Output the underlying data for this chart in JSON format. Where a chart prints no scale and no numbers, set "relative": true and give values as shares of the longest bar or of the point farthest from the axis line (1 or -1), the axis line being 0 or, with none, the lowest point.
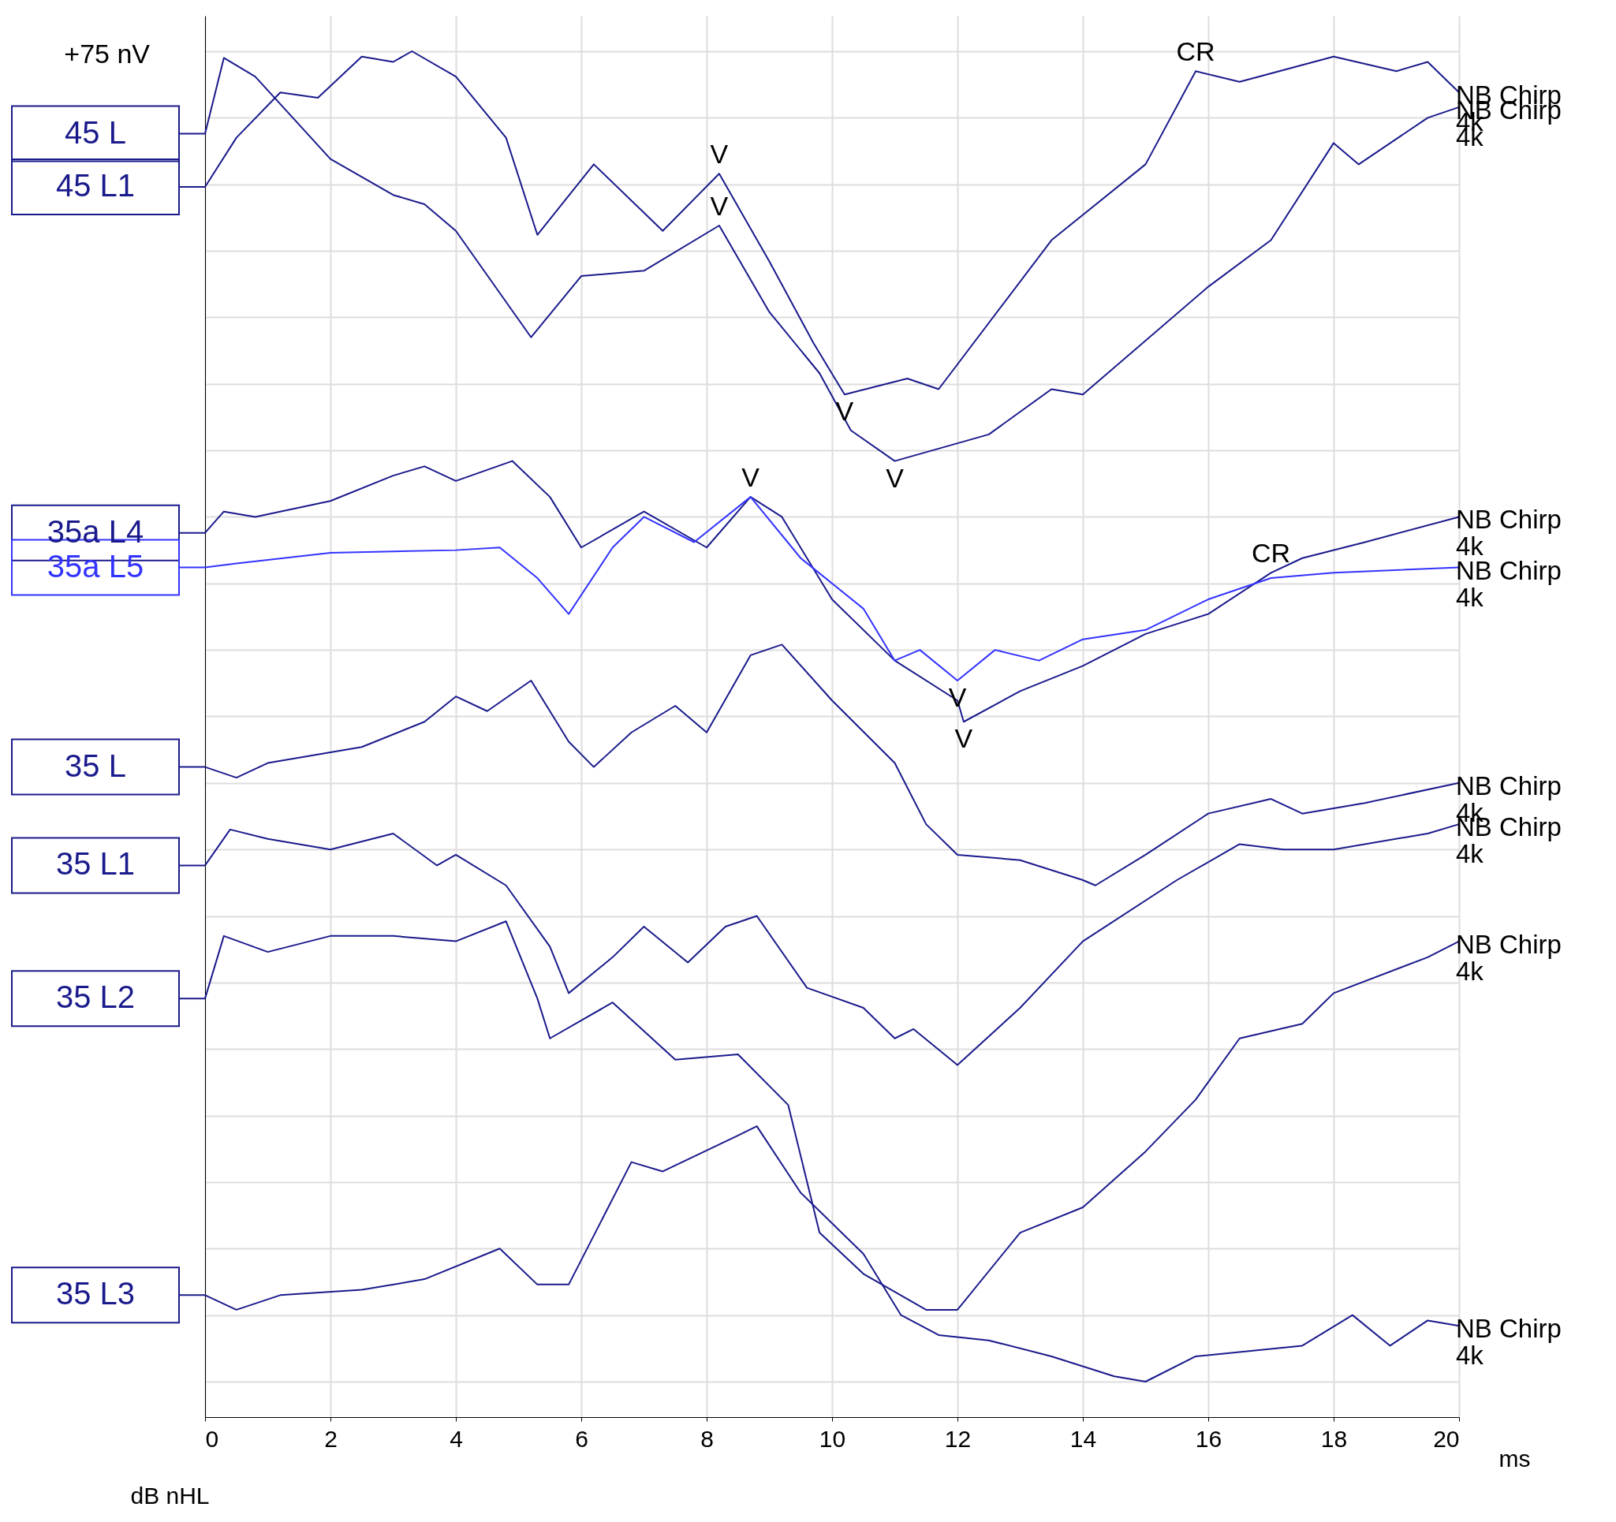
{
  "chart_data": {
    "type": "line",
    "relative": true,
    "xlabel": "ms",
    "ylabel": "dB nHL",
    "xlim": [
      0,
      20
    ],
    "xticks": [
      0,
      2,
      4,
      6,
      8,
      10,
      12,
      14,
      16,
      18,
      20
    ],
    "grid": true,
    "legend": "left",
    "marker": "none",
    "line_style": "solid",
    "series": [
      {
        "name": "45 L",
        "color": "#1a1a8c",
        "x": [
          0,
          0.3,
          0.8,
          2,
          3,
          3.5,
          4,
          5.2,
          6,
          7,
          8.2,
          9,
          9.8,
          10.3,
          11,
          12.5,
          13.5,
          14,
          16,
          17,
          18,
          18.4,
          19.5,
          20
        ],
        "values": [
          0.938,
          0.995,
          0.981,
          0.919,
          0.892,
          0.885,
          0.865,
          0.785,
          0.831,
          0.835,
          0.869,
          0.804,
          0.758,
          0.715,
          0.692,
          0.712,
          0.746,
          0.742,
          0.823,
          0.858,
          0.931,
          0.915,
          0.95,
          0.958
        ]
      },
      {
        "name": "45 L1",
        "color": "#1a1a8c",
        "x": [
          0,
          0.5,
          1.2,
          1.8,
          2.5,
          3,
          3.3,
          4,
          4.8,
          5.3,
          6.2,
          7.3,
          8.2,
          9,
          9.7,
          10.2,
          11.2,
          11.7,
          13.5,
          15,
          15.8,
          16.5,
          18,
          19,
          19.5,
          20
        ],
        "values": [
          0.898,
          0.935,
          0.969,
          0.965,
          0.996,
          0.992,
          1.0,
          0.981,
          0.935,
          0.862,
          0.915,
          0.865,
          0.908,
          0.842,
          0.781,
          0.742,
          0.754,
          0.746,
          0.858,
          0.915,
          0.985,
          0.977,
          0.996,
          0.985,
          0.992,
          0.969
        ]
      },
      {
        "name": "35a L4",
        "color": "#1a1a8c",
        "x": [
          0,
          0.3,
          0.8,
          2,
          3,
          3.5,
          4,
          4.9,
          5.5,
          6,
          7,
          8,
          8.7,
          9.2,
          10,
          11,
          12,
          12.1,
          13,
          14,
          15,
          16,
          17,
          17.5,
          18.5,
          20
        ],
        "values": [
          0.638,
          0.654,
          0.65,
          0.662,
          0.681,
          0.688,
          0.677,
          0.692,
          0.665,
          0.627,
          0.654,
          0.627,
          0.665,
          0.65,
          0.588,
          0.542,
          0.512,
          0.496,
          0.519,
          0.538,
          0.562,
          0.577,
          0.608,
          0.619,
          0.631,
          0.65
        ]
      },
      {
        "name": "35a L5",
        "color": "#3333ff",
        "x": [
          0,
          0.5,
          2,
          4,
          4.7,
          5.3,
          5.8,
          6.5,
          7,
          7.8,
          8.7,
          9.5,
          10.5,
          11,
          11.4,
          12,
          12.6,
          13.3,
          14,
          15,
          16,
          17,
          18,
          20
        ],
        "values": [
          0.612,
          0.615,
          0.623,
          0.625,
          0.627,
          0.604,
          0.577,
          0.627,
          0.65,
          0.631,
          0.665,
          0.619,
          0.581,
          0.542,
          0.55,
          0.527,
          0.55,
          0.542,
          0.558,
          0.565,
          0.588,
          0.604,
          0.608,
          0.612
        ]
      },
      {
        "name": "35 L",
        "color": "#1a1a8c",
        "x": [
          0,
          0.5,
          1,
          2.5,
          3.5,
          4,
          4.5,
          5.2,
          5.8,
          6.2,
          6.8,
          7.5,
          8,
          8.7,
          9.2,
          10,
          11,
          11.5,
          12,
          13,
          14,
          14.2,
          15,
          16,
          17,
          17.5,
          18.5,
          20
        ],
        "values": [
          0.462,
          0.454,
          0.465,
          0.477,
          0.496,
          0.515,
          0.504,
          0.527,
          0.481,
          0.462,
          0.488,
          0.508,
          0.488,
          0.546,
          0.554,
          0.512,
          0.465,
          0.419,
          0.396,
          0.392,
          0.377,
          0.373,
          0.396,
          0.427,
          0.438,
          0.427,
          0.435,
          0.45
        ]
      },
      {
        "name": "35 L1",
        "color": "#1a1a8c",
        "x": [
          0,
          0.4,
          1,
          2,
          3,
          3.7,
          4,
          4.8,
          5.5,
          5.8,
          6.5,
          7,
          7.7,
          8.3,
          8.8,
          9.6,
          10.5,
          11,
          11.3,
          12,
          13,
          14,
          15.5,
          16.5,
          17.2,
          18,
          19.5,
          20
        ],
        "values": [
          0.388,
          0.415,
          0.408,
          0.4,
          0.412,
          0.388,
          0.396,
          0.373,
          0.327,
          0.292,
          0.319,
          0.342,
          0.315,
          0.342,
          0.35,
          0.296,
          0.281,
          0.258,
          0.265,
          0.238,
          0.281,
          0.331,
          0.377,
          0.404,
          0.4,
          0.4,
          0.412,
          0.419
        ]
      },
      {
        "name": "35 L2",
        "color": "#1a1a8c",
        "x": [
          0,
          0.3,
          1,
          2,
          3,
          4,
          4.8,
          5.3,
          5.5,
          6.5,
          7.5,
          8.5,
          9.3,
          9.8,
          10.5,
          11.5,
          12,
          13,
          14,
          15,
          15.8,
          16.5,
          17.5,
          18,
          19.5,
          20
        ],
        "values": [
          0.288,
          0.335,
          0.323,
          0.335,
          0.335,
          0.331,
          0.346,
          0.288,
          0.258,
          0.285,
          0.242,
          0.246,
          0.208,
          0.112,
          0.081,
          0.054,
          0.054,
          0.112,
          0.131,
          0.173,
          0.212,
          0.258,
          0.269,
          0.292,
          0.319,
          0.331
        ]
      },
      {
        "name": "35 L3",
        "color": "#1a1a8c",
        "x": [
          0,
          0.5,
          1.2,
          2.5,
          3.5,
          4.7,
          5.3,
          5.8,
          6.8,
          7.3,
          8.5,
          8.8,
          9.5,
          10.5,
          11.1,
          11.7,
          12.5,
          13.5,
          14.5,
          15,
          15.8,
          17.5,
          18.3,
          18.9,
          19.5,
          20
        ],
        "values": [
          0.065,
          0.054,
          0.065,
          0.069,
          0.077,
          0.1,
          0.073,
          0.073,
          0.165,
          0.158,
          0.185,
          0.192,
          0.142,
          0.096,
          0.05,
          0.035,
          0.031,
          0.019,
          0.004,
          0,
          0.019,
          0.027,
          0.05,
          0.027,
          0.046,
          0.042
        ]
      }
    ],
    "annotations": [
      "+75 nV",
      {
        "text": "V",
        "x": 8.2,
        "y": 0.908
      },
      {
        "text": "V",
        "x": 8.2,
        "y": 0.869
      },
      {
        "text": "V",
        "x": 10.2,
        "y": 0.742
      },
      {
        "text": "V",
        "x": 11,
        "y": 0.692
      },
      {
        "text": "CR",
        "x": 15.8,
        "y": 0.985
      },
      {
        "text": "V",
        "x": 8.7,
        "y": 0.665
      },
      {
        "text": "V",
        "x": 12,
        "y": 0.527
      },
      {
        "text": "V",
        "x": 12.1,
        "y": 0.496
      },
      {
        "text": "CR",
        "x": 17,
        "y": 0.608
      },
      {
        "text": "NB Chirp\n4k",
        "x": 20,
        "y": 0.958
      },
      {
        "text": "NB Chirp\n4k",
        "x": 20,
        "y": 0.969
      },
      {
        "text": "NB Chirp\n4k",
        "x": 20,
        "y": 0.65
      },
      {
        "text": "NB Chirp\n4k",
        "x": 20,
        "y": 0.612
      },
      {
        "text": "NB Chirp\n4k",
        "x": 20,
        "y": 0.45
      },
      {
        "text": "NB Chirp\n4k",
        "x": 20,
        "y": 0.419
      },
      {
        "text": "NB Chirp\n4k",
        "x": 20,
        "y": 0.331
      },
      {
        "text": "NB Chirp\n4k",
        "x": 20,
        "y": 0.042
      }
    ]
  }
}
